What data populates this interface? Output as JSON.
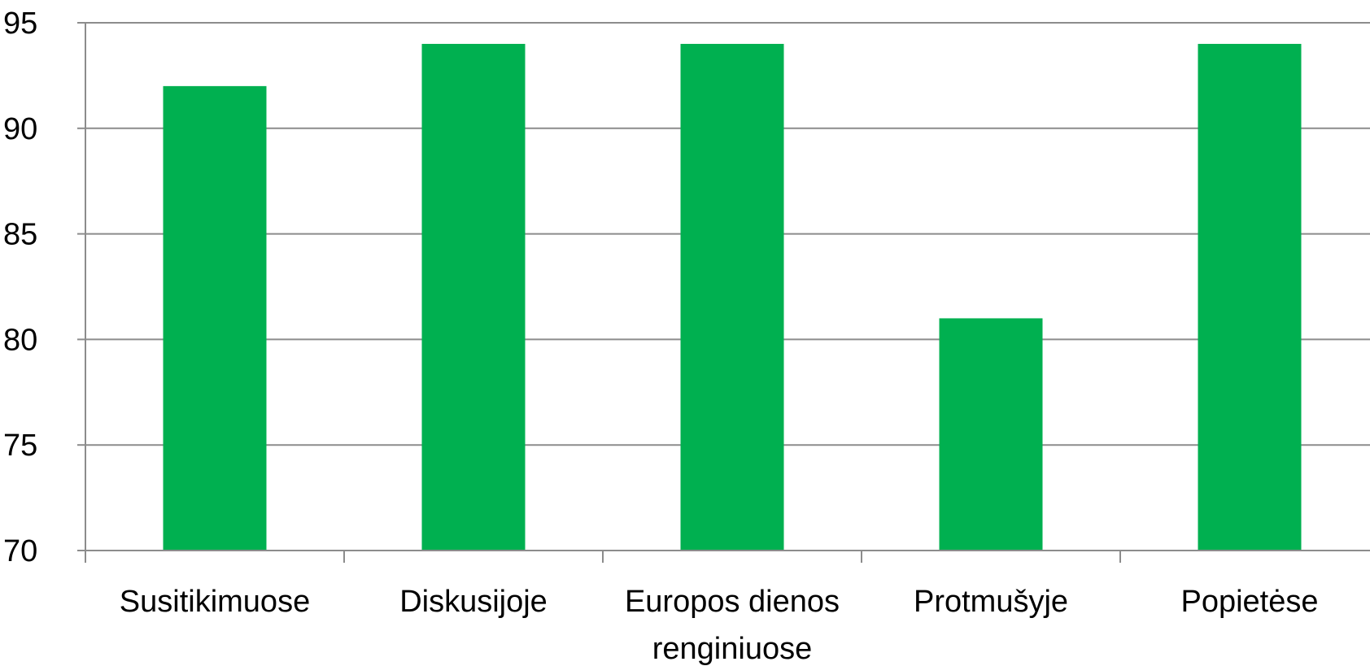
{
  "chart_data": {
    "type": "bar",
    "categories": [
      "Susitikimuose",
      "Diskusijoje",
      "Europos dienos renginiuose",
      "Protmušyje",
      "Popietėse"
    ],
    "category_lines": [
      [
        "Susitikimuose"
      ],
      [
        "Diskusijoje"
      ],
      [
        "Europos dienos",
        "renginiuose"
      ],
      [
        "Protmušyje"
      ],
      [
        "Popietėse"
      ]
    ],
    "values": [
      92,
      94,
      94,
      81,
      94
    ],
    "ylim": [
      70,
      95
    ],
    "yticks": [
      70,
      75,
      80,
      85,
      90,
      95
    ],
    "ytick_labels": [
      "70",
      "75",
      "80",
      "85",
      "90",
      "95"
    ],
    "grid": true,
    "title": "",
    "xlabel": "",
    "ylabel": "",
    "colors": {
      "bar": "#00b050",
      "grid": "#8c8c8c",
      "axis": "#8c8c8c",
      "text": "#000000"
    }
  }
}
